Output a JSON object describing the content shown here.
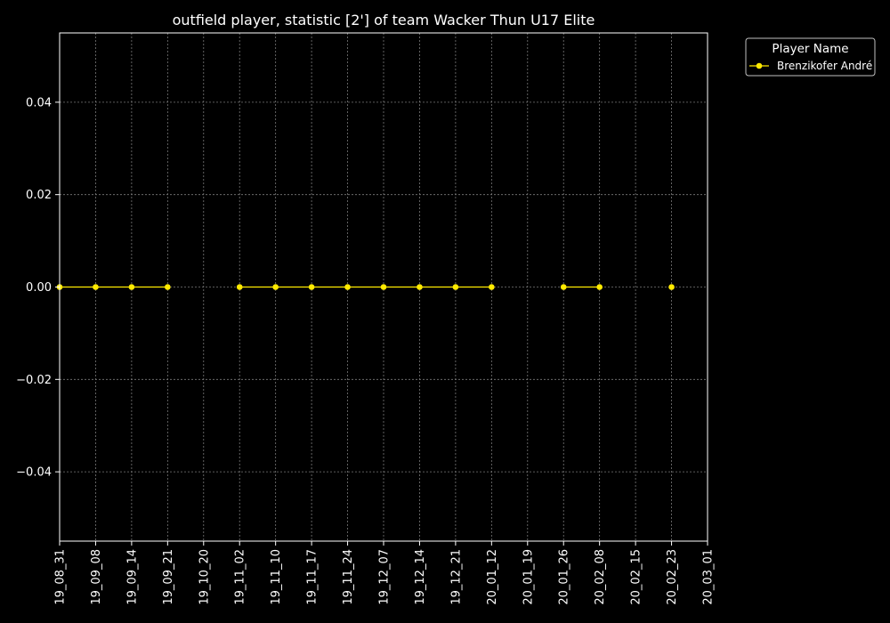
{
  "chart_data": {
    "type": "line",
    "title": "outfield player, statistic [2'] of team Wacker Thun U17 Elite",
    "xlabel": "",
    "ylabel": "",
    "x_ticks": [
      "19_08_31",
      "19_09_08",
      "19_09_14",
      "19_09_21",
      "19_10_20",
      "19_11_02",
      "19_11_10",
      "19_11_17",
      "19_11_24",
      "19_12_07",
      "19_12_14",
      "19_12_21",
      "20_01_12",
      "20_01_19",
      "20_01_26",
      "20_02_08",
      "20_02_15",
      "20_02_23",
      "20_03_01"
    ],
    "y_ticks": [
      "−0.04",
      "−0.02",
      "0.00",
      "0.02",
      "0.04"
    ],
    "y_tick_values": [
      -0.04,
      -0.02,
      0.0,
      0.02,
      0.04
    ],
    "ylim": [
      -0.055,
      0.055
    ],
    "grid": true,
    "legend": {
      "title": "Player Name",
      "placement": "outside-top-right"
    },
    "series": [
      {
        "name": "Brenzikofer André",
        "color": "#ffea00",
        "points": [
          {
            "x": "19_08_31",
            "y": 0
          },
          {
            "x": "19_09_08",
            "y": 0
          },
          {
            "x": "19_09_14",
            "y": 0
          },
          {
            "x": "19_09_21",
            "y": 0
          },
          {
            "x": "19_10_20",
            "y": null
          },
          {
            "x": "19_11_02",
            "y": 0
          },
          {
            "x": "19_11_10",
            "y": 0
          },
          {
            "x": "19_11_17",
            "y": 0
          },
          {
            "x": "19_11_24",
            "y": 0
          },
          {
            "x": "19_12_07",
            "y": 0
          },
          {
            "x": "19_12_14",
            "y": 0
          },
          {
            "x": "19_12_21",
            "y": 0
          },
          {
            "x": "20_01_12",
            "y": 0
          },
          {
            "x": "20_01_19",
            "y": null
          },
          {
            "x": "20_01_26",
            "y": 0
          },
          {
            "x": "20_02_08",
            "y": 0
          },
          {
            "x": "20_02_15",
            "y": null
          },
          {
            "x": "20_02_23",
            "y": 0
          },
          {
            "x": "20_03_01",
            "y": null
          }
        ]
      }
    ],
    "colors": {
      "background": "#000000",
      "foreground": "#ffffff",
      "grid": "#7a7a7a"
    }
  }
}
